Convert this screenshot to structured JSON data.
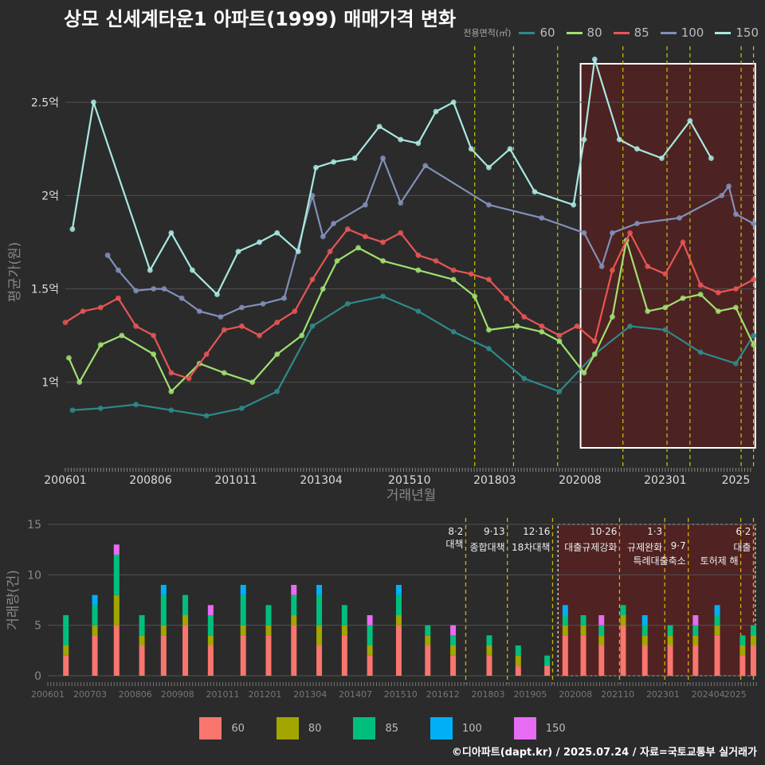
{
  "title": "상모 신세계타운1 아파트(1999) 매매가격 변화",
  "legend_title": "전용면적(㎡)",
  "footer": "©디아파트(dapt.kr) / 2025.07.24 / 자료=국토교통부 실거래가",
  "colors": {
    "background": "#2b2b2b",
    "grid": "#505050",
    "vline": "#c8c800",
    "highlight_fill": "#5a2020",
    "line_60": "#2e8a8a",
    "line_80": "#a0e070",
    "line_85": "#e85555",
    "line_100": "#8090b8",
    "line_150": "#a8e8e0",
    "bar_60": "#f8766d",
    "bar_80": "#a3a500",
    "bar_85": "#00bf7d",
    "bar_100": "#00b0f6",
    "bar_150": "#e76bf3"
  },
  "chart_data": [
    {
      "type": "line",
      "title": "상모 신세계타운1 아파트(1999) 매매가격 변화",
      "xlabel": "거래년월",
      "ylabel": "평균가(원)",
      "x_ticks": [
        "200601",
        "200806",
        "201011",
        "201304",
        "201510",
        "201803",
        "202008",
        "202301",
        "2025"
      ],
      "y_ticks": [
        {
          "value": 1.0,
          "label": "1억"
        },
        {
          "value": 1.5,
          "label": "1.5억"
        },
        {
          "value": 2.0,
          "label": "2억"
        },
        {
          "value": 2.5,
          "label": "2.5억"
        }
      ],
      "ylim": [
        0.55,
        2.8
      ],
      "xlim": [
        2006.0,
        2025.6
      ],
      "unit": "억",
      "legend_position": "top-right",
      "grid": true,
      "highlight_region": [
        2020.6,
        2025.55
      ],
      "event_lines": [
        2017.6,
        2018.7,
        2019.95,
        2021.8,
        2023.05,
        2023.7,
        2025.15,
        2025.5
      ],
      "series": [
        {
          "name": "60",
          "x": [
            2006.2,
            2007.0,
            2008.0,
            2009.0,
            2010.0,
            2011.0,
            2012.0,
            2013.0,
            2014.0,
            2015.0,
            2016.0,
            2017.0,
            2018.0,
            2019.0,
            2020.0,
            2021.0,
            2022.0,
            2023.0,
            2024.0,
            2025.0,
            2025.5
          ],
          "values": [
            0.85,
            0.86,
            0.88,
            0.85,
            0.82,
            0.86,
            0.95,
            1.3,
            1.42,
            1.46,
            1.38,
            1.27,
            1.18,
            1.02,
            0.95,
            1.15,
            1.3,
            1.28,
            1.16,
            1.1,
            1.25
          ]
        },
        {
          "name": "80",
          "x": [
            2006.1,
            2006.4,
            2007.0,
            2007.6,
            2008.5,
            2009.0,
            2009.8,
            2010.5,
            2011.3,
            2012.0,
            2012.7,
            2013.3,
            2013.7,
            2014.3,
            2015.0,
            2016.0,
            2017.0,
            2017.6,
            2018.0,
            2018.8,
            2019.5,
            2020.0,
            2020.7,
            2021.0,
            2021.5,
            2021.9,
            2022.5,
            2023.0,
            2023.5,
            2024.0,
            2024.5,
            2025.0,
            2025.5
          ],
          "values": [
            1.13,
            1.0,
            1.2,
            1.25,
            1.15,
            0.95,
            1.1,
            1.05,
            1.0,
            1.15,
            1.25,
            1.5,
            1.65,
            1.72,
            1.65,
            1.6,
            1.55,
            1.46,
            1.28,
            1.3,
            1.27,
            1.22,
            1.05,
            1.15,
            1.35,
            1.76,
            1.38,
            1.4,
            1.45,
            1.47,
            1.38,
            1.4,
            1.2
          ]
        },
        {
          "name": "85",
          "x": [
            2006.0,
            2006.5,
            2007.0,
            2007.5,
            2008.0,
            2008.5,
            2009.0,
            2009.5,
            2010.0,
            2010.5,
            2011.0,
            2011.5,
            2012.0,
            2012.5,
            2013.0,
            2013.5,
            2014.0,
            2014.5,
            2015.0,
            2015.5,
            2016.0,
            2016.5,
            2017.0,
            2017.5,
            2018.0,
            2018.5,
            2019.0,
            2019.5,
            2020.0,
            2020.5,
            2021.0,
            2021.5,
            2022.0,
            2022.5,
            2023.0,
            2023.5,
            2024.0,
            2024.5,
            2025.0,
            2025.5
          ],
          "values": [
            1.32,
            1.38,
            1.4,
            1.45,
            1.3,
            1.25,
            1.05,
            1.02,
            1.15,
            1.28,
            1.3,
            1.25,
            1.32,
            1.38,
            1.55,
            1.7,
            1.82,
            1.78,
            1.75,
            1.8,
            1.68,
            1.65,
            1.6,
            1.58,
            1.55,
            1.45,
            1.35,
            1.3,
            1.25,
            1.3,
            1.22,
            1.6,
            1.8,
            1.62,
            1.58,
            1.75,
            1.52,
            1.48,
            1.5,
            1.55
          ]
        },
        {
          "name": "100",
          "x": [
            2007.2,
            2007.5,
            2008.0,
            2008.5,
            2008.8,
            2009.3,
            2009.8,
            2010.4,
            2011.0,
            2011.6,
            2012.2,
            2013.0,
            2013.3,
            2013.6,
            2014.5,
            2015.0,
            2015.5,
            2016.2,
            2018.0,
            2019.5,
            2020.7,
            2021.2,
            2021.5,
            2022.2,
            2023.4,
            2024.6,
            2024.8,
            2025.0,
            2025.5
          ],
          "values": [
            1.68,
            1.6,
            1.49,
            1.5,
            1.5,
            1.45,
            1.38,
            1.35,
            1.4,
            1.42,
            1.45,
            2.0,
            1.78,
            1.85,
            1.95,
            2.2,
            1.96,
            2.16,
            1.95,
            1.88,
            1.8,
            1.62,
            1.8,
            1.85,
            1.88,
            2.0,
            2.05,
            1.9,
            1.85
          ]
        },
        {
          "name": "150",
          "x": [
            2006.2,
            2006.8,
            2008.4,
            2009.0,
            2009.6,
            2010.3,
            2010.9,
            2011.5,
            2012.0,
            2012.6,
            2013.1,
            2013.6,
            2014.2,
            2014.9,
            2015.5,
            2016.0,
            2016.5,
            2017.0,
            2017.5,
            2018.0,
            2018.6,
            2019.3,
            2020.4,
            2020.7,
            2021.0,
            2021.7,
            2022.2,
            2022.9,
            2023.7,
            2024.3
          ],
          "values": [
            1.82,
            2.5,
            1.6,
            1.8,
            1.6,
            1.47,
            1.7,
            1.75,
            1.8,
            1.7,
            2.15,
            2.18,
            2.2,
            2.37,
            2.3,
            2.28,
            2.45,
            2.5,
            2.25,
            2.15,
            2.25,
            2.02,
            1.95,
            2.3,
            2.73,
            2.3,
            2.25,
            2.2,
            2.4,
            2.2
          ]
        }
      ]
    },
    {
      "type": "bar",
      "stacked": true,
      "xlabel": "",
      "ylabel": "거래량(건)",
      "ylim": [
        0,
        15
      ],
      "y_ticks": [
        0,
        5,
        10,
        15
      ],
      "x_ticks": [
        "200601",
        "200703",
        "200806",
        "200908",
        "201011",
        "201201",
        "201304",
        "201407",
        "201510",
        "201612",
        "201803",
        "201905",
        "202008",
        "202110",
        "202301",
        "202404",
        "2025"
      ],
      "xlim": [
        2006.0,
        2025.6
      ],
      "legend_position": "bottom",
      "highlight_region": [
        2020.1,
        2025.55
      ],
      "event_lines": [
        2017.55,
        2018.7,
        2019.95,
        2021.8,
        2023.05,
        2023.7,
        2025.15,
        2025.5
      ],
      "annotations": [
        {
          "x": 2017.55,
          "date": "8·2",
          "text": "대책"
        },
        {
          "x": 2018.7,
          "date": "9·13",
          "text": "종합대책"
        },
        {
          "x": 2019.95,
          "date": "12·16",
          "text": "18차대책"
        },
        {
          "x": 2021.8,
          "date": "10·26",
          "text": "대출규제강화"
        },
        {
          "x": 2023.05,
          "date": "1·3",
          "text": "규제완화"
        },
        {
          "x": 2023.7,
          "date": "9·7",
          "text": "특례대출축소"
        },
        {
          "x": 2025.15,
          "date": "",
          "text": "토허제 해"
        },
        {
          "x": 2025.5,
          "date": "6·2",
          "text": "대출"
        }
      ],
      "categories": [
        "60",
        "80",
        "85",
        "100",
        "150"
      ],
      "series": [
        {
          "name": "60",
          "x": [
            2006.5,
            2007.3,
            2007.9,
            2008.6,
            2009.2,
            2009.8,
            2010.5,
            2011.4,
            2012.1,
            2012.8,
            2013.5,
            2014.2,
            2014.9,
            2015.7,
            2016.5,
            2017.2,
            2018.2,
            2019.0,
            2019.8,
            2020.3,
            2020.8,
            2021.3,
            2021.9,
            2022.5,
            2023.2,
            2023.9,
            2024.5,
            2025.2,
            2025.5
          ],
          "values": [
            2,
            4,
            5,
            3,
            4,
            5,
            3,
            4,
            4,
            5,
            3,
            4,
            2,
            5,
            3,
            2,
            2,
            1,
            1,
            4,
            4,
            3,
            5,
            3,
            3,
            3,
            4,
            2,
            3
          ]
        },
        {
          "name": "80",
          "x": [
            2006.5,
            2007.3,
            2007.9,
            2008.6,
            2009.2,
            2009.8,
            2010.5,
            2011.4,
            2012.1,
            2012.8,
            2013.5,
            2014.2,
            2014.9,
            2015.7,
            2016.5,
            2017.2,
            2018.2,
            2019.0,
            2019.8,
            2020.3,
            2020.8,
            2021.3,
            2021.9,
            2022.5,
            2023.2,
            2023.9,
            2024.5,
            2025.2,
            2025.5
          ],
          "values": [
            1,
            1,
            3,
            1,
            1,
            1,
            1,
            1,
            1,
            1,
            2,
            1,
            1,
            1,
            1,
            1,
            1,
            1,
            0,
            1,
            1,
            1,
            1,
            1,
            1,
            1,
            1,
            1,
            1
          ]
        },
        {
          "name": "85",
          "x": [
            2006.5,
            2007.3,
            2007.9,
            2008.6,
            2009.2,
            2009.8,
            2010.5,
            2011.4,
            2012.1,
            2012.8,
            2013.5,
            2014.2,
            2014.9,
            2015.7,
            2016.5,
            2017.2,
            2018.2,
            2019.0,
            2019.8,
            2020.3,
            2020.8,
            2021.3,
            2021.9,
            2022.5,
            2023.2,
            2023.9,
            2024.5,
            2025.2,
            2025.5
          ],
          "values": [
            3,
            2,
            4,
            2,
            3,
            2,
            2,
            3,
            2,
            2,
            3,
            2,
            2,
            2,
            1,
            1,
            1,
            1,
            1,
            1,
            1,
            1,
            1,
            1,
            1,
            1,
            1,
            1,
            1
          ]
        },
        {
          "name": "100",
          "x": [
            2007.3,
            2009.2,
            2011.4,
            2013.5,
            2015.7,
            2020.3,
            2022.5,
            2024.5
          ],
          "values": [
            1,
            1,
            1,
            1,
            1,
            1,
            1,
            1
          ]
        },
        {
          "name": "150",
          "x": [
            2007.9,
            2010.5,
            2012.8,
            2014.9,
            2017.2,
            2021.3,
            2023.9
          ],
          "values": [
            1,
            1,
            1,
            1,
            1,
            1,
            1
          ]
        }
      ]
    }
  ]
}
